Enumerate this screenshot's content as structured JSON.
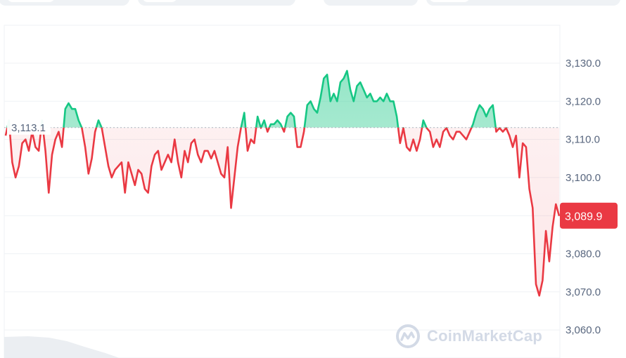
{
  "brand": {
    "watermark": "CoinMarketCap",
    "logo_icon": "coinmarketcap-logo-icon"
  },
  "top_controls": [
    {
      "name": "range-tab-group-left"
    },
    {
      "name": "range-tab-group-mid"
    },
    {
      "name": "chart-type-tab-group"
    },
    {
      "name": "option-tab-group-right"
    }
  ],
  "chart_data": {
    "type": "line",
    "title": "",
    "xlabel": "",
    "ylabel": "",
    "ylim": [
      3057,
      3135
    ],
    "y_ticks": [
      "3,130.0",
      "3,120.0",
      "3,110.0",
      "3,100.0",
      "3,090.0",
      "3,080.0",
      "3,070.0",
      "3,060.0"
    ],
    "y_tick_values": [
      3130,
      3120,
      3110,
      3100,
      3090,
      3080,
      3070,
      3060
    ],
    "grid": true,
    "baseline": {
      "value": 3113.1,
      "label": "3,113.1"
    },
    "current": {
      "value": 3089.9,
      "label": "3,089.9"
    },
    "colors": {
      "up": "#16c784",
      "down": "#ea3943",
      "grid": "#eff2f5",
      "axis_text": "#58667e"
    },
    "series": [
      {
        "values": [
          3111.0,
          3115.0,
          3104.0,
          3100.0,
          3103.0,
          3109.0,
          3110.0,
          3107.0,
          3112.0,
          3108.0,
          3107.0,
          3115.0,
          3107.0,
          3096.0,
          3106.0,
          3110.0,
          3112.0,
          3108.0,
          3118.0,
          3119.5,
          3118.0,
          3118.0,
          3115.0,
          3113.0,
          3108.0,
          3101.0,
          3105.0,
          3112.0,
          3115.0,
          3113.0,
          3108.0,
          3103.0,
          3100.0,
          3102.0,
          3103.0,
          3104.0,
          3096.0,
          3104.0,
          3101.0,
          3098.0,
          3102.0,
          3101.0,
          3097.0,
          3096.0,
          3103.0,
          3106.0,
          3107.0,
          3102.0,
          3104.0,
          3106.0,
          3104.0,
          3110.0,
          3104.0,
          3100.0,
          3107.0,
          3104.0,
          3109.0,
          3110.0,
          3106.0,
          3104.0,
          3107.0,
          3107.0,
          3105.0,
          3107.0,
          3104.0,
          3101.0,
          3100.0,
          3108.0,
          3092.0,
          3100.0,
          3108.0,
          3113.0,
          3117.0,
          3107.0,
          3110.0,
          3109.0,
          3116.0,
          3113.0,
          3115.0,
          3112.0,
          3114.0,
          3114.0,
          3115.0,
          3114.0,
          3112.0,
          3116.0,
          3117.0,
          3116.0,
          3108.0,
          3108.0,
          3112.0,
          3119.0,
          3120.0,
          3118.0,
          3117.0,
          3121.0,
          3126.0,
          3127.0,
          3120.0,
          3122.0,
          3120.0,
          3125.0,
          3126.0,
          3128.0,
          3123.0,
          3120.0,
          3124.0,
          3125.0,
          3123.0,
          3121.0,
          3122.0,
          3120.0,
          3120.0,
          3121.0,
          3120.0,
          3122.0,
          3120.0,
          3120.0,
          3116.0,
          3109.0,
          3113.0,
          3108.0,
          3107.0,
          3110.0,
          3107.0,
          3110.0,
          3115.0,
          3113.0,
          3112.0,
          3108.0,
          3110.0,
          3108.0,
          3112.0,
          3113.0,
          3111.0,
          3110.0,
          3112.0,
          3112.0,
          3111.0,
          3110.0,
          3112.0,
          3114.0,
          3117.0,
          3119.0,
          3118.0,
          3116.0,
          3118.0,
          3119.0,
          3112.0,
          3113.0,
          3112.0,
          3113.0,
          3111.0,
          3108.0,
          3111.0,
          3100.0,
          3109.0,
          3108.0,
          3097.0,
          3092.0,
          3072.0,
          3069.0,
          3073.0,
          3086.0,
          3078.0,
          3087.0,
          3093.0,
          3089.9
        ]
      }
    ]
  }
}
